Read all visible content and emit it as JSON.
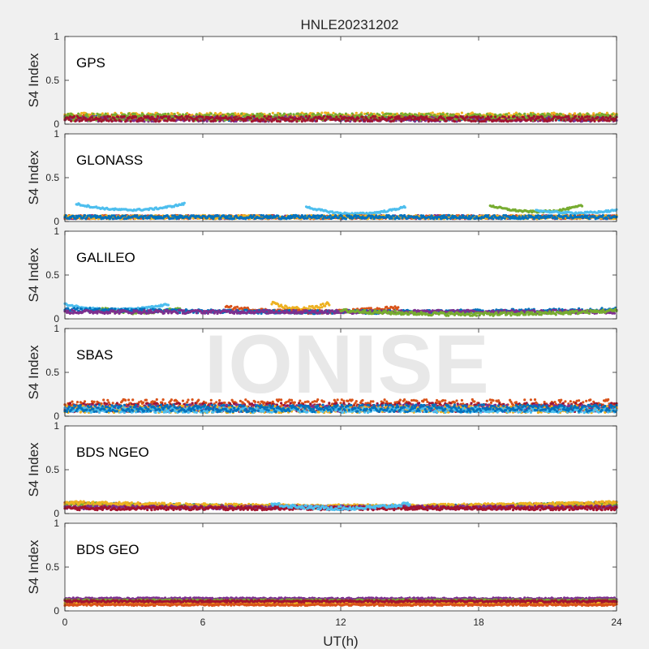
{
  "figure": {
    "title": "HNLE20231202",
    "xlabel": "UT(h)",
    "ylabel": "S4 Index",
    "watermark": "IONISE"
  },
  "colors": {
    "background": "#f0f0f0",
    "axes_bg": "#ffffff",
    "axis_line": "#262626",
    "series": [
      "#0072BD",
      "#D95319",
      "#EDB120",
      "#7E2F8E",
      "#77AC30",
      "#4DBEEE",
      "#A2142F"
    ]
  },
  "chart_data": [
    {
      "type": "scatter",
      "panel_label": "GPS",
      "xlim": [
        0,
        24
      ],
      "ylim": [
        0,
        1
      ],
      "xticks": [
        0,
        6,
        12,
        18,
        24
      ],
      "yticks": [
        0,
        0.5,
        1
      ],
      "ytick_labels": [
        "0",
        "0.5",
        "1"
      ],
      "grid": false,
      "series_profiles": [
        {
          "color_index": 0,
          "base": 0.07,
          "noise": 0.03,
          "x_range": [
            0,
            24
          ]
        },
        {
          "color_index": 1,
          "base": 0.08,
          "noise": 0.03,
          "x_range": [
            0,
            24
          ]
        },
        {
          "color_index": 2,
          "base": 0.09,
          "noise": 0.04,
          "x_range": [
            0,
            24
          ]
        },
        {
          "color_index": 3,
          "base": 0.06,
          "noise": 0.03,
          "x_range": [
            0,
            24
          ]
        },
        {
          "color_index": 4,
          "base": 0.08,
          "noise": 0.04,
          "x_range": [
            0,
            24
          ]
        },
        {
          "color_index": 6,
          "base": 0.06,
          "noise": 0.03,
          "x_range": [
            0,
            24
          ]
        }
      ]
    },
    {
      "type": "scatter",
      "panel_label": "GLONASS",
      "xlim": [
        0,
        24
      ],
      "ylim": [
        0,
        1
      ],
      "xticks": [
        0,
        6,
        12,
        18,
        24
      ],
      "yticks": [
        0,
        0.5,
        1
      ],
      "ytick_labels": [
        "0",
        "0.5",
        "1"
      ],
      "grid": false,
      "series_profiles": [
        {
          "color_index": 5,
          "base": 0.16,
          "noise": 0.01,
          "x_range": [
            0.5,
            5.2
          ],
          "arc": 0.07
        },
        {
          "color_index": 5,
          "base": 0.12,
          "noise": 0.01,
          "x_range": [
            10.5,
            14.8
          ],
          "arc": 0.08
        },
        {
          "color_index": 4,
          "base": 0.14,
          "noise": 0.01,
          "x_range": [
            18.5,
            22.5
          ],
          "arc": 0.07
        },
        {
          "color_index": 5,
          "base": 0.11,
          "noise": 0.01,
          "x_range": [
            20.5,
            24
          ],
          "arc": 0.03
        },
        {
          "color_index": 3,
          "base": 0.05,
          "noise": 0.02,
          "x_range": [
            0,
            24
          ]
        },
        {
          "color_index": 1,
          "base": 0.05,
          "noise": 0.02,
          "x_range": [
            0,
            24
          ]
        },
        {
          "color_index": 2,
          "base": 0.05,
          "noise": 0.02,
          "x_range": [
            0,
            24
          ]
        },
        {
          "color_index": 0,
          "base": 0.05,
          "noise": 0.02,
          "x_range": [
            0,
            24
          ]
        }
      ]
    },
    {
      "type": "scatter",
      "panel_label": "GALILEO",
      "xlim": [
        0,
        24
      ],
      "ylim": [
        0,
        1
      ],
      "xticks": [
        0,
        6,
        12,
        18,
        24
      ],
      "yticks": [
        0,
        0.5,
        1
      ],
      "ytick_labels": [
        "0",
        "0.5",
        "1"
      ],
      "grid": false,
      "series_profiles": [
        {
          "color_index": 5,
          "base": 0.13,
          "noise": 0.01,
          "x_range": [
            0,
            4.5
          ],
          "arc": 0.06
        },
        {
          "color_index": 4,
          "base": 0.09,
          "noise": 0.02,
          "x_range": [
            1.5,
            5
          ],
          "arc": 0.04
        },
        {
          "color_index": 2,
          "base": 0.14,
          "noise": 0.02,
          "x_range": [
            9,
            11.5
          ],
          "arc": 0.06
        },
        {
          "color_index": 1,
          "base": 0.1,
          "noise": 0.02,
          "x_range": [
            7,
            14.5
          ],
          "arc": 0.05
        },
        {
          "color_index": 0,
          "base": 0.09,
          "noise": 0.02,
          "x_range": [
            0,
            24
          ],
          "arc": 0.03
        },
        {
          "color_index": 3,
          "base": 0.08,
          "noise": 0.02,
          "x_range": [
            0,
            24
          ]
        },
        {
          "color_index": 4,
          "base": 0.07,
          "noise": 0.02,
          "x_range": [
            12,
            24
          ],
          "arc": 0.04
        }
      ]
    },
    {
      "type": "scatter",
      "panel_label": "SBAS",
      "xlim": [
        0,
        24
      ],
      "ylim": [
        0,
        1
      ],
      "xticks": [
        0,
        6,
        12,
        18,
        24
      ],
      "yticks": [
        0,
        0.5,
        1
      ],
      "ytick_labels": [
        "0",
        "0.5",
        "1"
      ],
      "grid": false,
      "series_profiles": [
        {
          "color_index": 1,
          "base": 0.13,
          "noise": 0.06,
          "x_range": [
            0,
            24
          ]
        },
        {
          "color_index": 6,
          "base": 0.1,
          "noise": 0.05,
          "x_range": [
            0,
            24
          ]
        },
        {
          "color_index": 3,
          "base": 0.09,
          "noise": 0.04,
          "x_range": [
            0,
            24
          ]
        },
        {
          "color_index": 2,
          "base": 0.08,
          "noise": 0.04,
          "x_range": [
            0,
            24
          ]
        },
        {
          "color_index": 5,
          "base": 0.07,
          "noise": 0.03,
          "x_range": [
            0,
            24
          ]
        },
        {
          "color_index": 0,
          "base": 0.09,
          "noise": 0.04,
          "x_range": [
            0,
            24
          ]
        }
      ]
    },
    {
      "type": "scatter",
      "panel_label": "BDS NGEO",
      "xlim": [
        0,
        24
      ],
      "ylim": [
        0,
        1
      ],
      "xticks": [
        0,
        6,
        12,
        18,
        24
      ],
      "yticks": [
        0,
        0.5,
        1
      ],
      "ytick_labels": [
        "0",
        "0.5",
        "1"
      ],
      "grid": false,
      "series_profiles": [
        {
          "color_index": 0,
          "base": 0.09,
          "noise": 0.02,
          "x_range": [
            0,
            24
          ],
          "arc": 0.04
        },
        {
          "color_index": 1,
          "base": 0.09,
          "noise": 0.02,
          "x_range": [
            0,
            24
          ],
          "arc": 0.04
        },
        {
          "color_index": 4,
          "base": 0.09,
          "noise": 0.02,
          "x_range": [
            0,
            24
          ],
          "arc": 0.04
        },
        {
          "color_index": 2,
          "base": 0.1,
          "noise": 0.02,
          "x_range": [
            0,
            24
          ],
          "arc": 0.04
        },
        {
          "color_index": 3,
          "base": 0.07,
          "noise": 0.02,
          "x_range": [
            0,
            24
          ]
        },
        {
          "color_index": 6,
          "base": 0.06,
          "noise": 0.02,
          "x_range": [
            0,
            24
          ]
        },
        {
          "color_index": 5,
          "base": 0.08,
          "noise": 0.02,
          "x_range": [
            9,
            15
          ],
          "arc": 0.05
        }
      ]
    },
    {
      "type": "scatter",
      "panel_label": "BDS GEO",
      "xlim": [
        0,
        24
      ],
      "ylim": [
        0,
        1
      ],
      "xticks": [
        0,
        6,
        12,
        18,
        24
      ],
      "yticks": [
        0,
        0.5,
        1
      ],
      "ytick_labels": [
        "0",
        "0.5",
        "1"
      ],
      "xtick_labels": [
        "0",
        "6",
        "12",
        "18",
        "24"
      ],
      "grid": false,
      "series_profiles": [
        {
          "color_index": 3,
          "base": 0.14,
          "noise": 0.01,
          "x_range": [
            0,
            24
          ]
        },
        {
          "color_index": 4,
          "base": 0.12,
          "noise": 0.01,
          "x_range": [
            0,
            24
          ]
        },
        {
          "color_index": 2,
          "base": 0.09,
          "noise": 0.01,
          "x_range": [
            0,
            24
          ]
        },
        {
          "color_index": 1,
          "base": 0.07,
          "noise": 0.01,
          "x_range": [
            0,
            24
          ]
        },
        {
          "color_index": 6,
          "base": 0.11,
          "noise": 0.01,
          "x_range": [
            0,
            24
          ]
        }
      ]
    }
  ]
}
